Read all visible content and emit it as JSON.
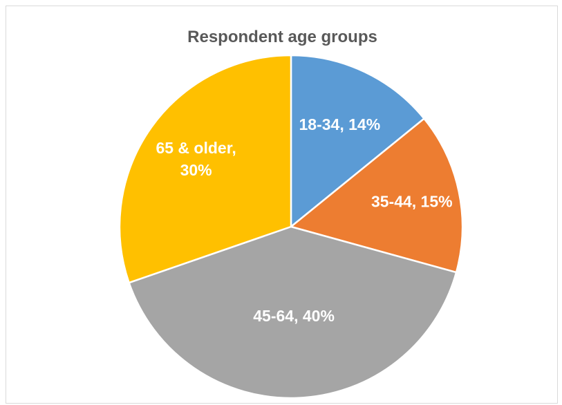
{
  "chart_data": {
    "type": "pie",
    "title": "Respondent age groups",
    "slices": [
      {
        "label": "18-34",
        "value": 14,
        "color": "#5B9BD5",
        "data_label": [
          "18-34, 14%"
        ]
      },
      {
        "label": "35-44",
        "value": 15,
        "color": "#ED7D31",
        "data_label": [
          "35-44, 15%"
        ]
      },
      {
        "label": "45-64",
        "value": 40,
        "color": "#A5A5A5",
        "data_label": [
          "45-64, 40%"
        ]
      },
      {
        "label": "65 & older",
        "value": 30,
        "color": "#FFC000",
        "data_label": [
          "65 & older,",
          "30%"
        ]
      }
    ],
    "start_angle_deg": 0,
    "direction": "clockwise",
    "legend": "none"
  }
}
